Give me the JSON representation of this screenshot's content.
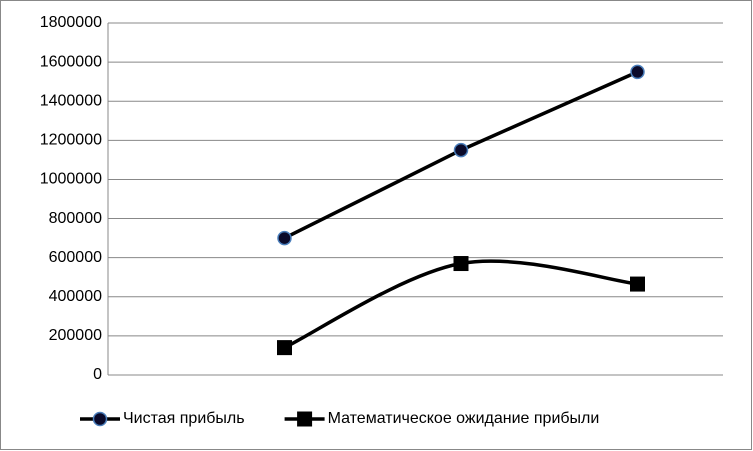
{
  "chart_data": {
    "type": "line",
    "categories": [
      null,
      null,
      null
    ],
    "series": [
      {
        "name": "Чистая прибыль",
        "color": "#000000",
        "marker": "circle",
        "smooth": false,
        "values": [
          700000,
          1150000,
          1550000
        ]
      },
      {
        "name": "Математическое ожидание прибыли",
        "color": "#000000",
        "marker": "square",
        "smooth": true,
        "values": [
          140000,
          570000,
          465000
        ]
      }
    ],
    "ylim": [
      0,
      1800000
    ],
    "yticks": [
      0,
      200000,
      400000,
      600000,
      800000,
      1000000,
      1200000,
      1400000,
      1600000,
      1800000
    ],
    "grid": true,
    "legend": "bottom"
  }
}
